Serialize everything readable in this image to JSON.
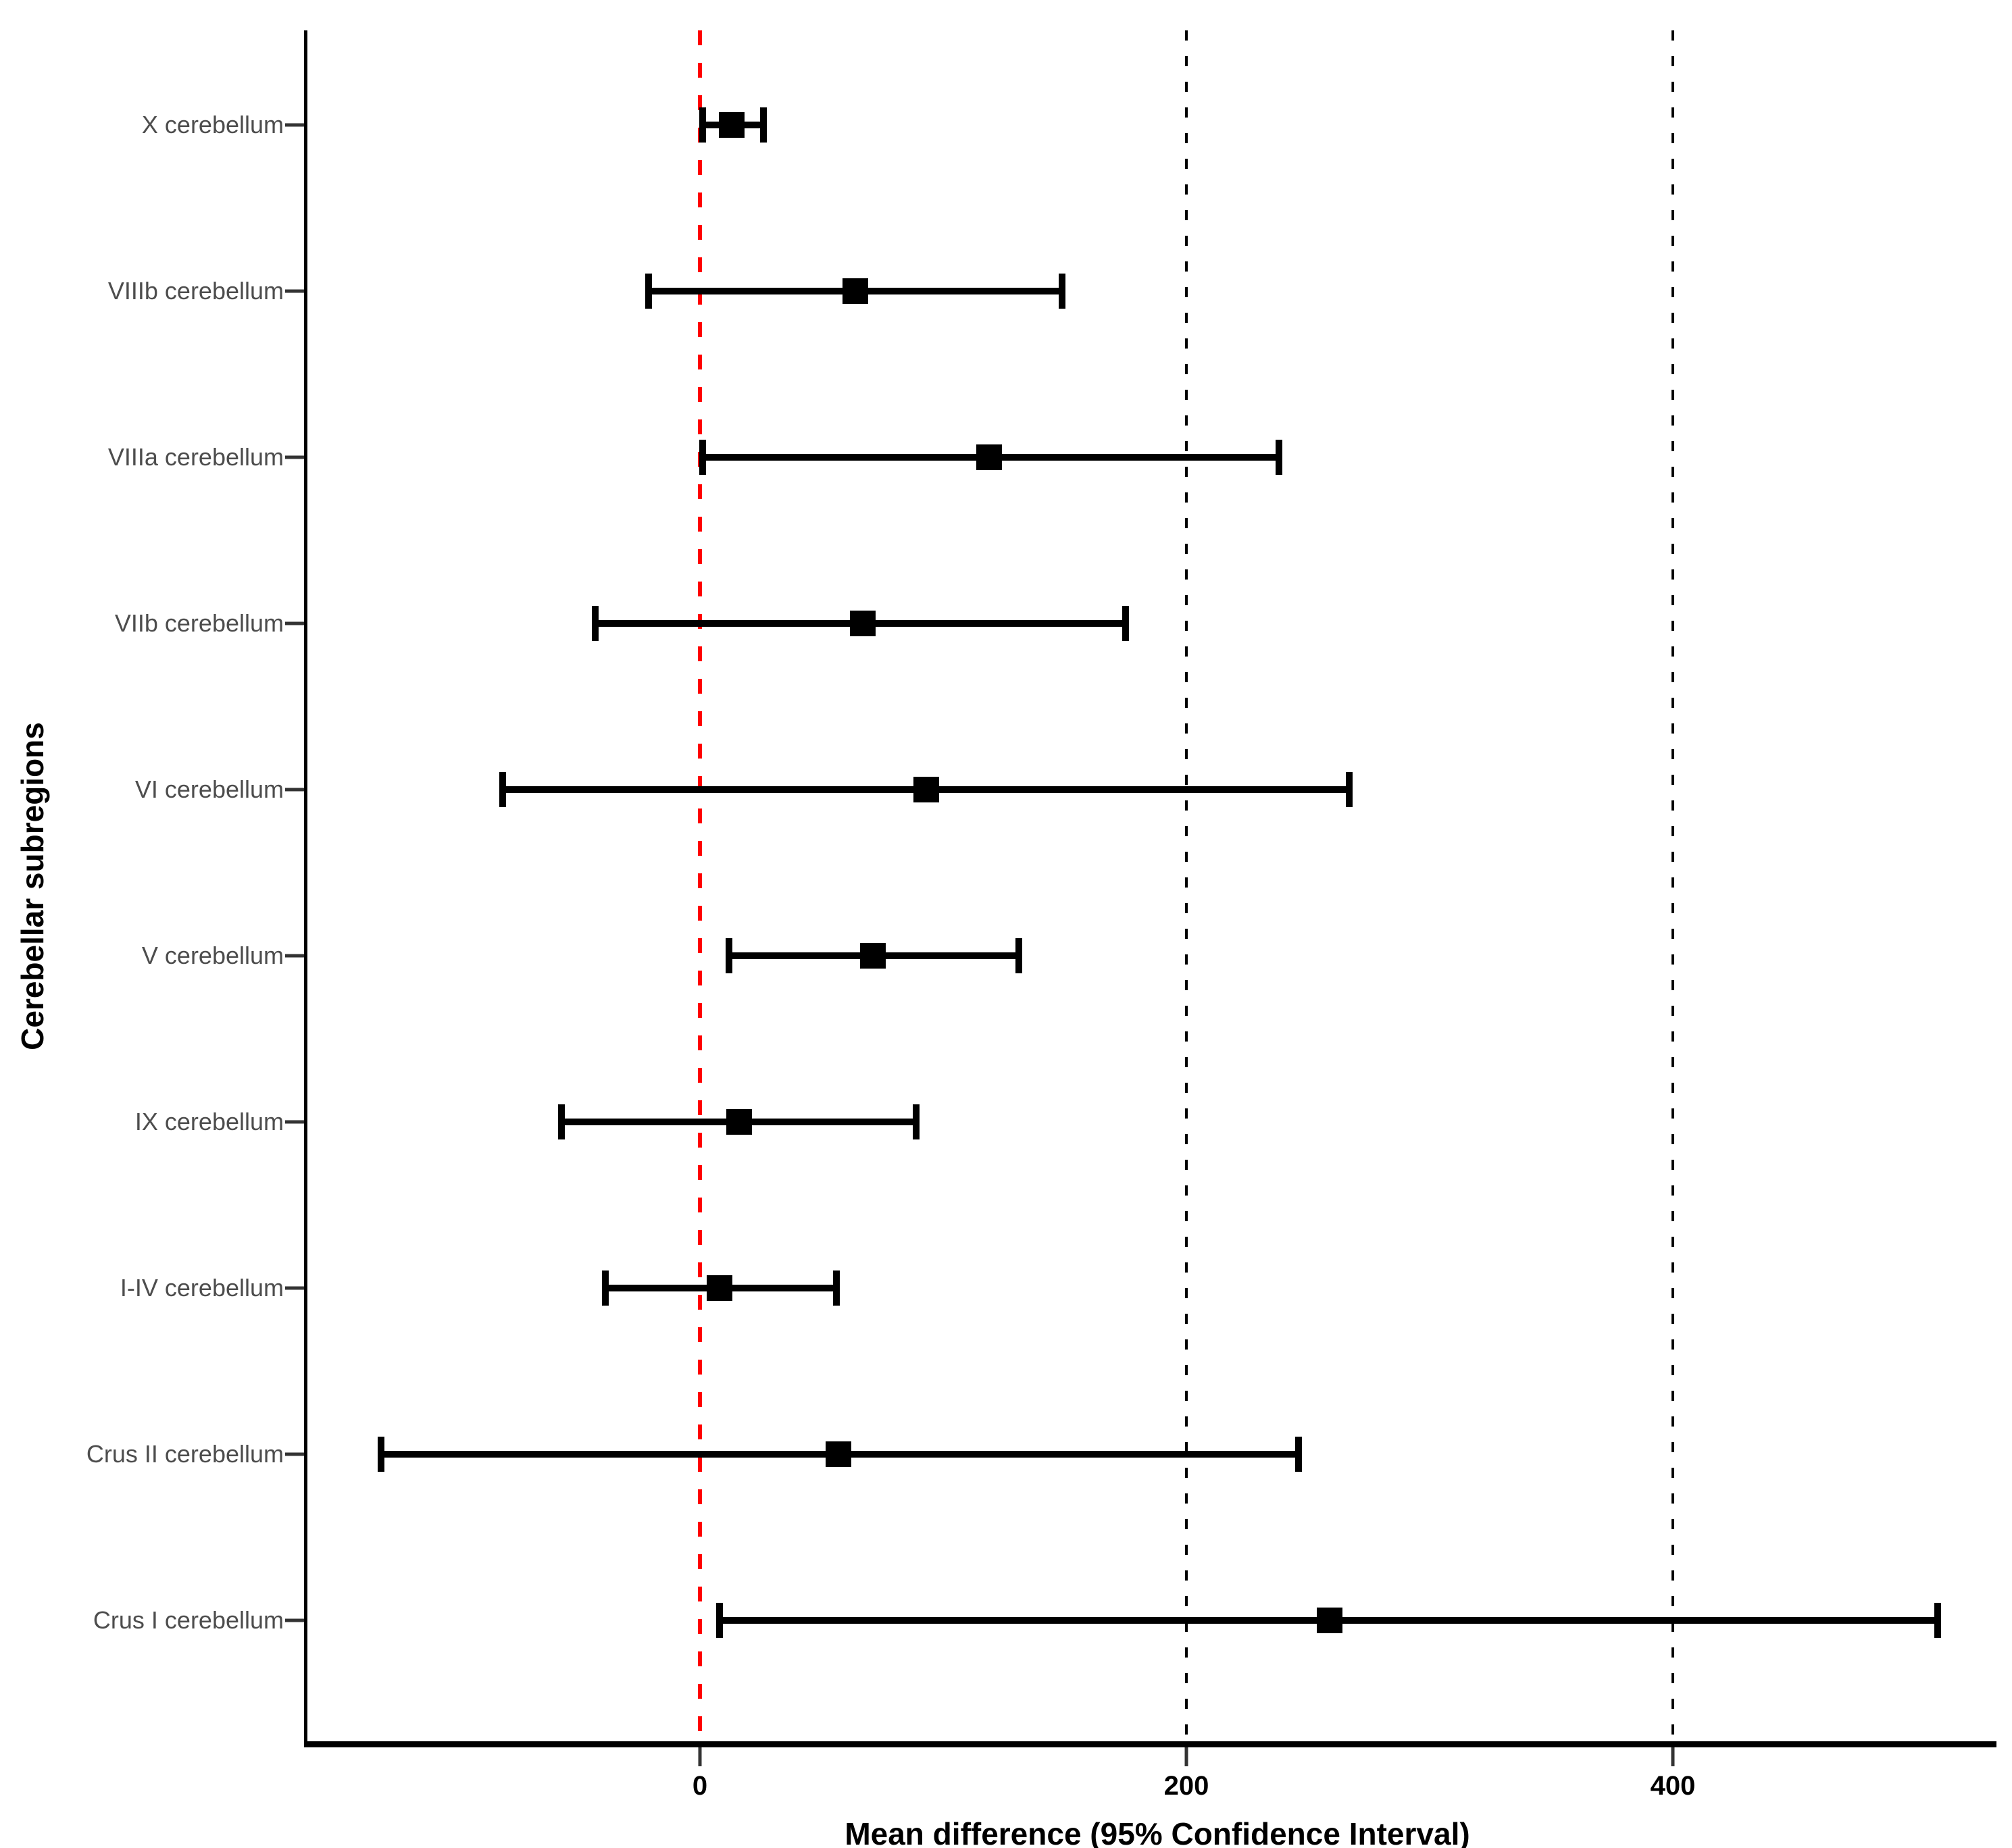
{
  "chart_data": {
    "type": "scatter",
    "subtype": "forest-plot",
    "title": "",
    "xlabel": "Mean difference (95% Confidence Interval)",
    "ylabel": "Cerebellar subregions",
    "legend": null,
    "grid": "dashed vertical reference lines only",
    "xlim": [
      -161,
      532
    ],
    "categories": [
      "X cerebellum",
      "VIIIb cerebellum",
      "VIIIa cerebellum",
      "VIIb cerebellum",
      "VI cerebellum",
      "V cerebellum",
      "IX cerebellum",
      "I-IV cerebellum",
      "Crus II cerebellum",
      "Crus I cerebellum"
    ],
    "points": [
      {
        "label": "X cerebellum",
        "mean": 13,
        "ci_low": 1,
        "ci_high": 26
      },
      {
        "label": "VIIIb cerebellum",
        "mean": 64,
        "ci_low": -21,
        "ci_high": 149
      },
      {
        "label": "VIIIa cerebellum",
        "mean": 119,
        "ci_low": 1,
        "ci_high": 238
      },
      {
        "label": "VIIb cerebellum",
        "mean": 67,
        "ci_low": -43,
        "ci_high": 175
      },
      {
        "label": "VI cerebellum",
        "mean": 93,
        "ci_low": -81,
        "ci_high": 267
      },
      {
        "label": "V cerebellum",
        "mean": 71,
        "ci_low": 12,
        "ci_high": 131
      },
      {
        "label": "IX cerebellum",
        "mean": 16,
        "ci_low": -57,
        "ci_high": 89
      },
      {
        "label": "I-IV cerebellum",
        "mean": 8,
        "ci_low": -39,
        "ci_high": 56
      },
      {
        "label": "Crus II cerebellum",
        "mean": 57,
        "ci_low": -131,
        "ci_high": 246
      },
      {
        "label": "Crus I cerebellum",
        "mean": 259,
        "ci_low": 8,
        "ci_high": 509
      }
    ],
    "xticks": [
      {
        "label": "0",
        "value": 0
      },
      {
        "label": "200",
        "value": 200
      },
      {
        "label": "400",
        "value": 400
      }
    ],
    "reference_lines": [
      {
        "value": 0,
        "color": "#ff0000",
        "style": "dashed"
      },
      {
        "value": 200,
        "color": "#000000",
        "style": "dashed"
      },
      {
        "value": 400,
        "color": "#000000",
        "style": "dashed"
      }
    ],
    "colors": {
      "marker": "#000000",
      "error_bar": "#000000",
      "axis_line": "#000000",
      "tick_label": "#000000",
      "category_label": "#4d4d4d",
      "zero_line": "#ff0000",
      "background": "#ffffff"
    },
    "legend_position": "none"
  }
}
